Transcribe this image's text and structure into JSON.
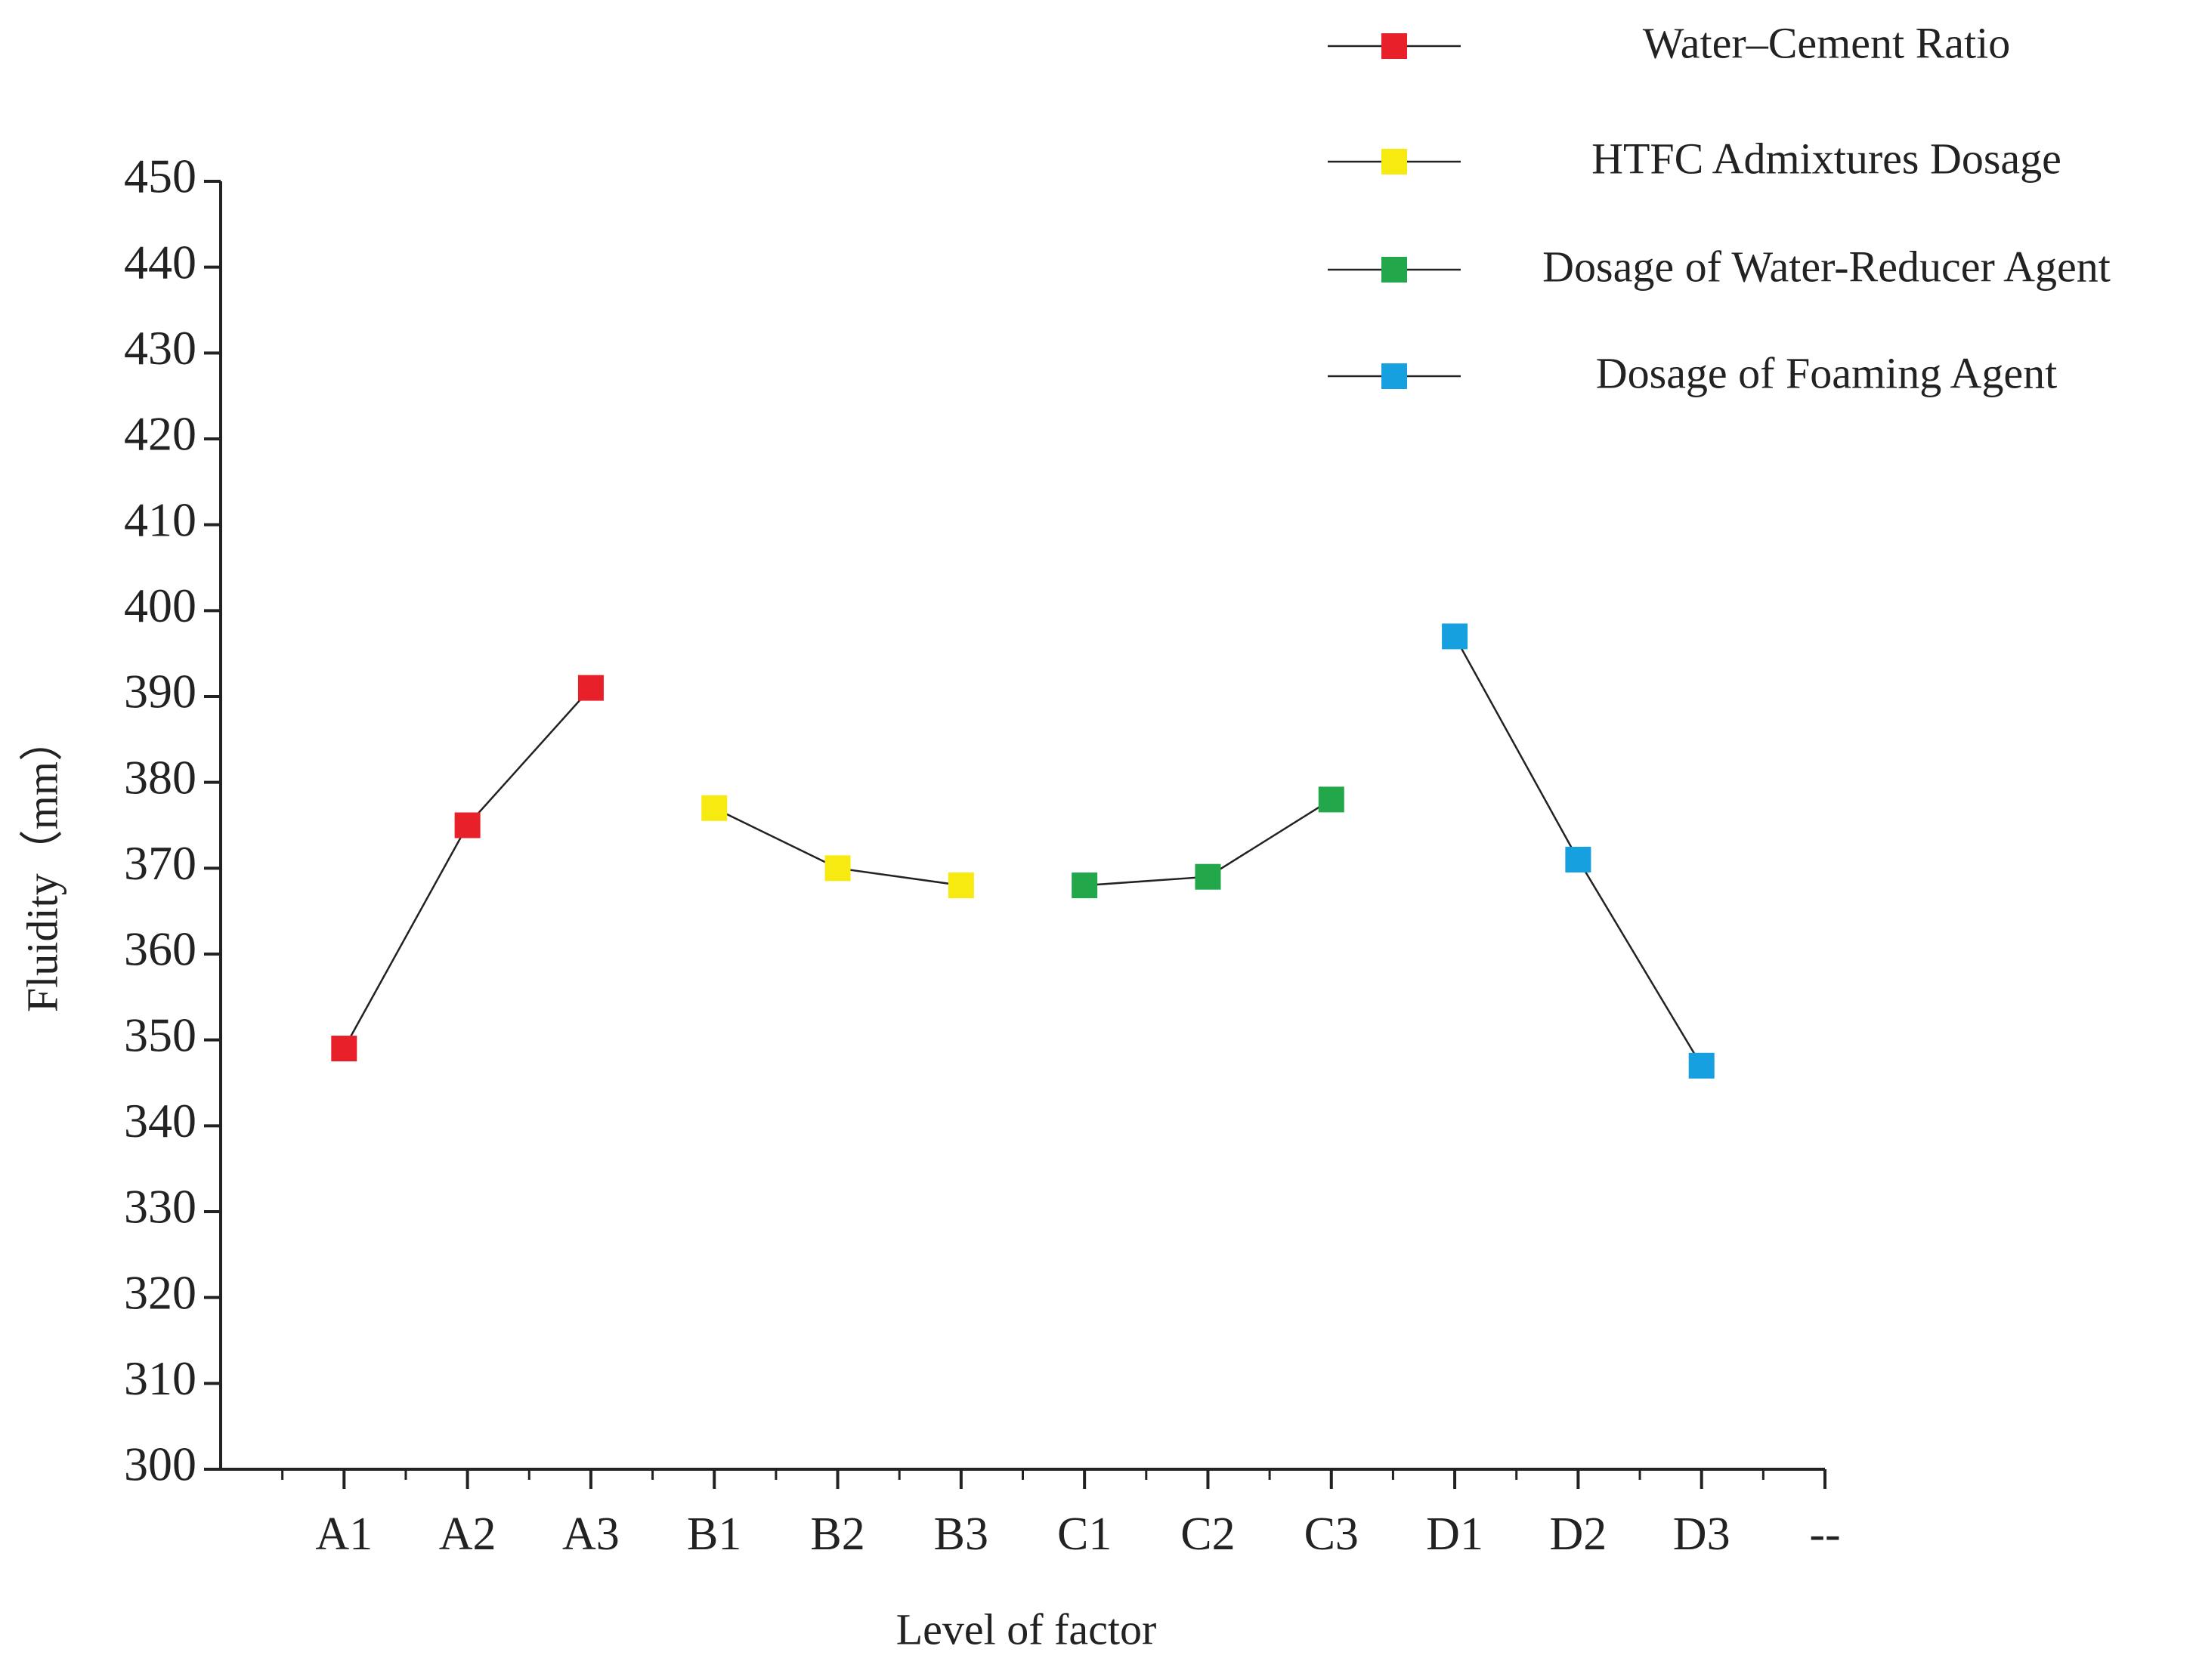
{
  "chart_data": {
    "type": "line",
    "xlabel": "Level of factor",
    "ylabel": "Fluidity（mm）",
    "categories": [
      "A1",
      "A2",
      "A3",
      "B1",
      "B2",
      "B3",
      "C1",
      "C2",
      "C3",
      "D1",
      "D2",
      "D3",
      "--"
    ],
    "series": [
      {
        "name": "Water–Cement Ratio",
        "color": "#e8202a",
        "values": [
          349,
          375,
          391,
          null,
          null,
          null,
          null,
          null,
          null,
          null,
          null,
          null,
          null
        ]
      },
      {
        "name": "HTFC Admixtures Dosage",
        "color": "#f7ea10",
        "values": [
          null,
          null,
          null,
          377,
          370,
          368,
          null,
          null,
          null,
          null,
          null,
          null,
          null
        ]
      },
      {
        "name": "Dosage of Water-Reducer Agent",
        "color": "#22a84a",
        "values": [
          null,
          null,
          null,
          null,
          null,
          null,
          368,
          369,
          378,
          null,
          null,
          null,
          null
        ]
      },
      {
        "name": "Dosage of Foaming Agent",
        "color": "#16a0e0",
        "values": [
          null,
          null,
          null,
          null,
          null,
          null,
          null,
          null,
          null,
          397,
          371,
          347,
          null
        ]
      }
    ],
    "ylim": [
      300,
      450
    ],
    "yticks": [
      300,
      310,
      320,
      330,
      340,
      350,
      360,
      370,
      380,
      390,
      400,
      410,
      420,
      430,
      440,
      450
    ],
    "line_color": "#222222",
    "legend": "upper right",
    "grid": false
  }
}
